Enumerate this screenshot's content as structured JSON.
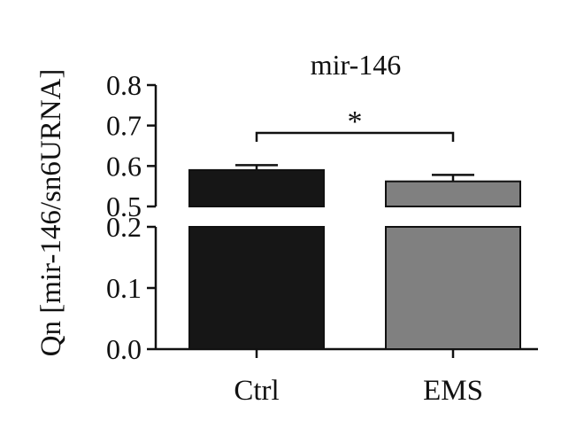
{
  "chart_data": {
    "type": "bar",
    "title": "mir-146",
    "ylabel": "Qn [mir-146/sn6URNA]",
    "xlabel": "",
    "categories": [
      "Ctrl",
      "EMS"
    ],
    "values": [
      0.59,
      0.562
    ],
    "errors": [
      0.012,
      0.016
    ],
    "bar_colors": [
      "#161616",
      "#808080"
    ],
    "axis_break": {
      "from": 0.2,
      "to": 0.5
    },
    "ylim_lower": [
      0.0,
      0.2
    ],
    "ylim_upper": [
      0.5,
      0.8
    ],
    "yticks_lower": [
      "0.0",
      "0.1",
      "0.2"
    ],
    "yticks_upper": [
      "0.5",
      "0.6",
      "0.7",
      "0.8"
    ],
    "significance": {
      "between": [
        "Ctrl",
        "EMS"
      ],
      "label": "*"
    },
    "legend": "none",
    "grid": false
  }
}
